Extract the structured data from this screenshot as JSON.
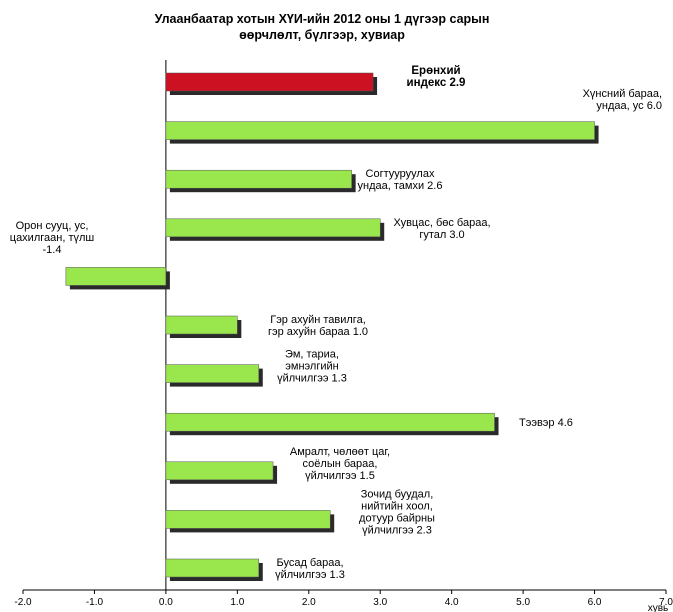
{
  "chart_data": {
    "type": "bar",
    "orientation": "horizontal",
    "title_lines": [
      "Улаанбаатар хотын  ХҮИ-ийн  2012 оны 1 дүгээр сарын",
      "өөрчлөлт,  бүлгээр, хувиар"
    ],
    "xlabel": "хувь",
    "xlim": [
      -2.0,
      7.0
    ],
    "x_ticks": [
      "-2.0",
      "-1.0",
      "0.0",
      "1.0",
      "2.0",
      "3.0",
      "4.0",
      "5.0",
      "6.0",
      "7.0"
    ],
    "grid": false,
    "colors": {
      "highlight": "#cc1122",
      "bar": "#99e64d",
      "shadow": "#2a2a2a"
    },
    "bars": [
      {
        "value": 2.9,
        "label_lines": [
          "Ерөнхий",
          "индекс    2.9"
        ],
        "highlight": true
      },
      {
        "value": 6.0,
        "label_lines": [
          "Хүнсний бараа,",
          "ундаа, ус 6.0"
        ]
      },
      {
        "value": 2.6,
        "label_lines": [
          "Согтууруулах",
          "ундаа, тамхи 2.6"
        ]
      },
      {
        "value": 3.0,
        "label_lines": [
          "Хувцас, бөс бараа,",
          "гутал 3.0"
        ]
      },
      {
        "value": -1.4,
        "label_lines": [
          "Орон сууц, ус,",
          "цахилгаан, түлш",
          "-1.4"
        ]
      },
      {
        "value": 1.0,
        "label_lines": [
          "Гэр ахуйн  тавилга,",
          "гэр ахуйн  бараа  1.0"
        ]
      },
      {
        "value": 1.3,
        "label_lines": [
          "Эм, тариа,",
          "эмнэлгийн",
          "үйлчилгээ 1.3"
        ]
      },
      {
        "value": 4.6,
        "label_lines": [
          "Тээвэр 4.6"
        ]
      },
      {
        "value": 1.5,
        "label_lines": [
          "Амралт, чөлөөт цаг,",
          "соёлын бараа,",
          "үйлчилгээ 1.5"
        ]
      },
      {
        "value": 2.3,
        "label_lines": [
          "Зочид буудал,",
          "нийтийн хоол,",
          "дотуур байрны",
          "үйлчилгээ 2.3"
        ]
      },
      {
        "value": 1.3,
        "label_lines": [
          "Бусад бараа,",
          "үйлчилгээ 1.3"
        ]
      }
    ]
  }
}
